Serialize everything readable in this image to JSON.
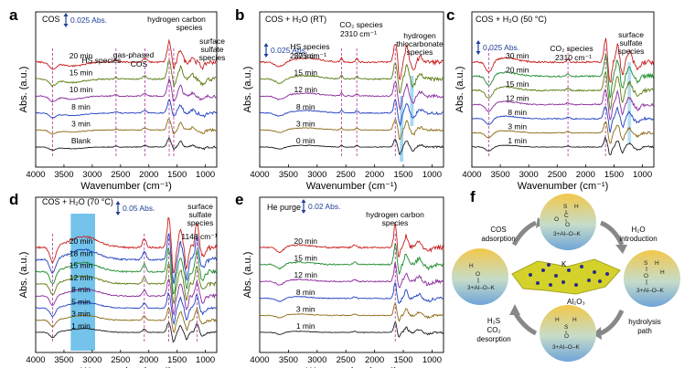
{
  "colors": {
    "black": "#1a1a1a",
    "brown": "#8b6a14",
    "blue": "#1f3fbf",
    "purple": "#8a2a9c",
    "olive": "#5a7a10",
    "green": "#1b8a2a",
    "red": "#c81d1d",
    "highlight": "#5ab8e8",
    "scale_blue": "#1f3f9a"
  },
  "x_tick_labels": [
    "4000",
    "3500",
    "3000",
    "2500",
    "2000",
    "1500",
    "1000"
  ],
  "xlabel": "Wavenumber (cm⁻¹)",
  "ylabel": "Abs. (a.u.)",
  "panel_f": {
    "letter": "f",
    "cos_adsorption": [
      "COS",
      "adsorption"
    ],
    "h2o_introduction": [
      "H₂O",
      "introduction"
    ],
    "hydrolysis_path": [
      "hydrolysis",
      "path"
    ],
    "h2s_co2_desorption": [
      "H₂S",
      "CO₂",
      "desorption"
    ],
    "k_label": "K",
    "support_label": "Al₂O₃",
    "mol_left": [
      "H",
      "O",
      "3+Al–O–K"
    ],
    "mol_top": [
      "S",
      "H",
      "C",
      "O",
      "O",
      "3+Al–O–K"
    ],
    "mol_right": [
      "S",
      "H",
      "O",
      "H",
      "3+Al–O–K"
    ],
    "mol_bottom": [
      "H",
      "H",
      "S",
      "O",
      "3+Al–O–K"
    ]
  },
  "chart_data": [
    {
      "panel": "a",
      "type": "line",
      "condition": "COS",
      "scale_bar": "0.025 Abs.",
      "xlabel": "Wavenumber (cm⁻¹)",
      "ylabel": "Abs. (a.u.)",
      "xlim": [
        4000,
        800
      ],
      "x_ticks": [
        4000,
        3500,
        3000,
        2500,
        2000,
        1500,
        1000
      ],
      "series": [
        {
          "name": "Blank",
          "color": "black"
        },
        {
          "name": "3 min",
          "color": "brown"
        },
        {
          "name": "8 min",
          "color": "blue"
        },
        {
          "name": "10 min",
          "color": "purple"
        },
        {
          "name": "15 min",
          "color": "olive"
        },
        {
          "name": "20 min",
          "color": "red"
        }
      ],
      "annotations": [
        "HS species",
        "gas-phased COS",
        "hydrogen carbon species",
        "surface sulfate species"
      ],
      "features": [
        [
          3700,
          -0.5,
          60
        ],
        [
          3350,
          -0.3,
          200
        ],
        [
          2580,
          0.15,
          25
        ],
        [
          2070,
          0.3,
          35
        ],
        [
          1640,
          1.6,
          35
        ],
        [
          1560,
          -0.6,
          25
        ],
        [
          1440,
          1.0,
          35
        ],
        [
          1230,
          0.4,
          30
        ],
        [
          1050,
          -0.4,
          40
        ]
      ]
    },
    {
      "panel": "b",
      "type": "line",
      "condition": "COS + H₂O (RT)",
      "scale_bar": "0.025 Abs.",
      "xlabel": "Wavenumber (cm⁻¹)",
      "ylabel": "Abs. (a.u.)",
      "xlim": [
        4000,
        800
      ],
      "x_ticks": [
        4000,
        3500,
        3000,
        2500,
        2000,
        1500,
        1000
      ],
      "series": [
        {
          "name": "0 min",
          "color": "black"
        },
        {
          "name": "3 min",
          "color": "brown"
        },
        {
          "name": "8 min",
          "color": "blue"
        },
        {
          "name": "12 min",
          "color": "purple"
        },
        {
          "name": "15 min",
          "color": "olive"
        },
        {
          "name": "20 min",
          "color": "red"
        }
      ],
      "annotations": [
        "HS species 2575 cm⁻¹",
        "CO₂ species 2310 cm⁻¹",
        "hydrogen thiocarbonate species"
      ],
      "features": [
        [
          3650,
          -0.4,
          80
        ],
        [
          3200,
          0.3,
          250
        ],
        [
          2575,
          0.3,
          20
        ],
        [
          2310,
          0.25,
          25
        ],
        [
          1640,
          1.5,
          30
        ],
        [
          1560,
          -1.4,
          25
        ],
        [
          1440,
          1.2,
          30
        ],
        [
          1330,
          -0.7,
          30
        ],
        [
          1200,
          0.4,
          40
        ]
      ]
    },
    {
      "panel": "c",
      "type": "line",
      "condition": "COS + H₂O (50 °C)",
      "scale_bar": "0.025 Abs.",
      "xlabel": "Wavenumber (cm⁻¹)",
      "ylabel": "Abs. (a.u.)",
      "xlim": [
        4000,
        800
      ],
      "x_ticks": [
        4000,
        3500,
        3000,
        2500,
        2000,
        1500,
        1000
      ],
      "series": [
        {
          "name": "1 min",
          "color": "black"
        },
        {
          "name": "3 min",
          "color": "brown"
        },
        {
          "name": "8 min",
          "color": "blue"
        },
        {
          "name": "12 min",
          "color": "purple"
        },
        {
          "name": "15 min",
          "color": "olive"
        },
        {
          "name": "20 min",
          "color": "green"
        },
        {
          "name": "30 min",
          "color": "red"
        }
      ],
      "annotations": [
        "CO₂ species 2310 cm⁻¹",
        "surface sulfate species"
      ],
      "features": [
        [
          3700,
          -0.8,
          60
        ],
        [
          3400,
          0.3,
          200
        ],
        [
          2310,
          0.2,
          25
        ],
        [
          1650,
          1.6,
          30
        ],
        [
          1570,
          -1.6,
          25
        ],
        [
          1440,
          1.2,
          30
        ],
        [
          1350,
          -1.0,
          25
        ],
        [
          1230,
          0.7,
          35
        ],
        [
          1080,
          -0.5,
          40
        ]
      ]
    },
    {
      "panel": "d",
      "type": "line",
      "condition": "COS + H₂O (70 °C)",
      "scale_bar": "0.05 Abs.",
      "xlabel": "Wavenumber (cm⁻¹)",
      "ylabel": "Abs. (a.u.)",
      "xlim": [
        4000,
        800
      ],
      "x_ticks": [
        4000,
        3500,
        3000,
        2500,
        2000,
        1500,
        1000
      ],
      "series": [
        {
          "name": "1 min",
          "color": "black"
        },
        {
          "name": "3 min",
          "color": "brown"
        },
        {
          "name": "5 min",
          "color": "blue"
        },
        {
          "name": "8 min",
          "color": "purple"
        },
        {
          "name": "12 min",
          "color": "olive"
        },
        {
          "name": "15 min",
          "color": "green"
        },
        {
          "name": "18 min",
          "color": "blue"
        },
        {
          "name": "20 min",
          "color": "red"
        }
      ],
      "annotations": [
        "surface sulfate species",
        "1148 cm⁻¹"
      ],
      "features": [
        [
          3700,
          -1.0,
          50
        ],
        [
          3150,
          0.7,
          250
        ],
        [
          2080,
          0.6,
          30
        ],
        [
          1650,
          1.8,
          30
        ],
        [
          1560,
          -1.8,
          25
        ],
        [
          1440,
          1.2,
          30
        ],
        [
          1330,
          -1.4,
          25
        ],
        [
          1148,
          1.6,
          30
        ],
        [
          1050,
          -0.6,
          40
        ]
      ]
    },
    {
      "panel": "e",
      "type": "line",
      "condition": "He purge",
      "scale_bar": "0.02 Abs.",
      "xlabel": "Wavenumber (cm⁻¹)",
      "ylabel": "Abs. (a.u.)",
      "xlim": [
        4000,
        800
      ],
      "x_ticks": [
        4000,
        3500,
        3000,
        2500,
        2000,
        1500,
        1000
      ],
      "series": [
        {
          "name": "1 min",
          "color": "black"
        },
        {
          "name": "3 min",
          "color": "brown"
        },
        {
          "name": "8 min",
          "color": "blue"
        },
        {
          "name": "12 min",
          "color": "purple"
        },
        {
          "name": "15 min",
          "color": "green"
        },
        {
          "name": "20 min",
          "color": "red"
        }
      ],
      "annotations": [
        "hydrogen carbon species"
      ],
      "features": [
        [
          3650,
          -0.4,
          60
        ],
        [
          3300,
          0.2,
          200
        ],
        [
          2350,
          0.2,
          30
        ],
        [
          1640,
          1.9,
          25
        ],
        [
          1580,
          -0.8,
          25
        ],
        [
          1450,
          0.9,
          30
        ],
        [
          1230,
          0.5,
          40
        ],
        [
          1060,
          -0.3,
          50
        ]
      ]
    }
  ]
}
